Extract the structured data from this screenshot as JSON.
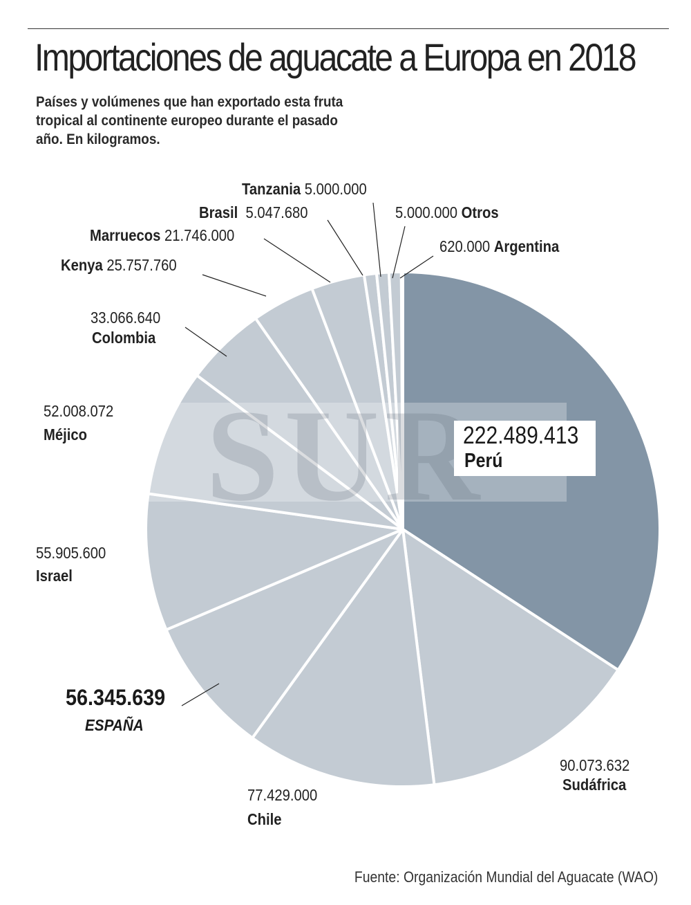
{
  "header": {
    "title": "Importaciones de aguacate a Europa en 2018",
    "subtitle": "Países y volúmenes que han exportado esta fruta tropical al continente europeo durante el pasado año. En kilogramos."
  },
  "watermark": "SUR",
  "source": "Fuente: Organización Mundial del Aguacate (WAO)",
  "chart_data": {
    "type": "pie",
    "title": "Importaciones de aguacate a Europa en 2018",
    "unit": "kilogramos",
    "start": "top",
    "direction": "clockwise",
    "colors": {
      "highlight": "#8395a6",
      "default": "#c3cbd3",
      "separator": "#ffffff"
    },
    "slices": [
      {
        "label": "Perú",
        "value": 222489413,
        "value_text": "222.489.413",
        "highlight": true
      },
      {
        "label": "Sudáfrica",
        "value": 90073632,
        "value_text": "90.073.632"
      },
      {
        "label": "Chile",
        "value": 77429000,
        "value_text": "77.429.000"
      },
      {
        "label": "ESPAÑA",
        "value": 56345639,
        "value_text": "56.345.639"
      },
      {
        "label": "Israel",
        "value": 55905600,
        "value_text": "55.905.600"
      },
      {
        "label": "Méjico",
        "value": 52008072,
        "value_text": "52.008.072"
      },
      {
        "label": "Colombia",
        "value": 33066640,
        "value_text": "33.066.640"
      },
      {
        "label": "Kenya",
        "value": 25757760,
        "value_text": "25.757.760"
      },
      {
        "label": "Marruecos",
        "value": 21746000,
        "value_text": "21.746.000"
      },
      {
        "label": "Brasil",
        "value": 5047680,
        "value_text": "5.047.680"
      },
      {
        "label": "Tanzania",
        "value": 5000000,
        "value_text": "5.000.000"
      },
      {
        "label": "Otros",
        "value": 5000000,
        "value_text": "5.000.000"
      },
      {
        "label": "Argentina",
        "value": 620000,
        "value_text": "620.000"
      }
    ]
  }
}
